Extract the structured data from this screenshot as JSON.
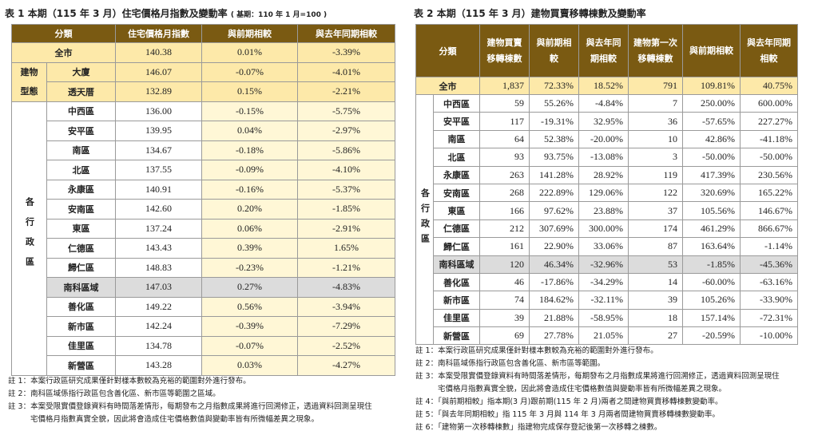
{
  "table1": {
    "title": "表 1 本期（115 年 3 月）住宅價格月指數及變動率",
    "base_note": "( 基期：110 年 1 月=100 )",
    "headers": [
      "分類",
      "住宅價格月指數",
      "與前期相較",
      "與去年同期相較"
    ],
    "total": {
      "name": "全市",
      "index": "140.38",
      "mom": "0.01%",
      "yoy": "-3.39%"
    },
    "building_group_label": "建物型態",
    "building_rows": [
      {
        "name": "大廈",
        "index": "146.07",
        "mom": "-0.07%",
        "yoy": "-4.01%"
      },
      {
        "name": "透天厝",
        "index": "132.89",
        "mom": "0.15%",
        "yoy": "-2.21%"
      }
    ],
    "district_group_label": "各行政區",
    "district_rows": [
      {
        "name": "中西區",
        "index": "136.00",
        "mom": "-0.15%",
        "yoy": "-5.75%"
      },
      {
        "name": "安平區",
        "index": "139.95",
        "mom": "0.04%",
        "yoy": "-2.97%"
      },
      {
        "name": "南區",
        "index": "134.67",
        "mom": "-0.18%",
        "yoy": "-5.86%"
      },
      {
        "name": "北區",
        "index": "137.55",
        "mom": "-0.09%",
        "yoy": "-4.10%"
      },
      {
        "name": "永康區",
        "index": "140.91",
        "mom": "-0.16%",
        "yoy": "-5.37%"
      },
      {
        "name": "安南區",
        "index": "142.60",
        "mom": "0.20%",
        "yoy": "-1.85%"
      },
      {
        "name": "東區",
        "index": "137.24",
        "mom": "0.06%",
        "yoy": "-2.91%"
      },
      {
        "name": "仁德區",
        "index": "143.43",
        "mom": "0.39%",
        "yoy": "1.65%"
      },
      {
        "name": "歸仁區",
        "index": "148.83",
        "mom": "-0.23%",
        "yoy": "-1.21%"
      },
      {
        "name": "南科區域",
        "index": "147.03",
        "mom": "0.27%",
        "yoy": "-4.83%",
        "highlight": true
      },
      {
        "name": "善化區",
        "index": "149.22",
        "mom": "0.56%",
        "yoy": "-3.94%"
      },
      {
        "name": "新市區",
        "index": "142.24",
        "mom": "-0.39%",
        "yoy": "-7.29%"
      },
      {
        "name": "佳里區",
        "index": "134.78",
        "mom": "-0.07%",
        "yoy": "-2.52%"
      },
      {
        "name": "新營區",
        "index": "143.28",
        "mom": "0.03%",
        "yoy": "-4.27%"
      }
    ],
    "notes": [
      "註 1：本案行政區研究成果僅針對樣本數較為充裕的範圍對外進行發布。",
      "註 2：南科區域係指行政區包含善化區、新市區等範圍之區域。",
      "註 3：本案受限實價登錄資料有時間落差情形，每期發布之月指數成果將進行回溯修正，透過資料回測呈現住",
      "宅價格月指數真實全貌，因此將會造成住宅價格數值與變動率皆有所微幅差異之現象。"
    ]
  },
  "table2": {
    "title": "表 2 本期（115 年 3 月）建物買賣移轉棟數及變動率",
    "headers": [
      "分類",
      "建物買賣移轉棟數",
      "與前期相較",
      "與去年同期相較",
      "建物第一次移轉棟數",
      "與前期相較",
      "與去年同期相較"
    ],
    "total": {
      "name": "全市",
      "sale": "1,837",
      "mom": "72.33%",
      "yoy": "18.52%",
      "first": "791",
      "fmom": "109.81%",
      "fyoy": "40.75%"
    },
    "district_group_label": "各行政區",
    "rows": [
      {
        "name": "中西區",
        "sale": "59",
        "mom": "55.26%",
        "yoy": "-4.84%",
        "first": "7",
        "fmom": "250.00%",
        "fyoy": "600.00%"
      },
      {
        "name": "安平區",
        "sale": "117",
        "mom": "-19.31%",
        "yoy": "32.95%",
        "first": "36",
        "fmom": "-57.65%",
        "fyoy": "227.27%"
      },
      {
        "name": "南區",
        "sale": "64",
        "mom": "52.38%",
        "yoy": "-20.00%",
        "first": "10",
        "fmom": "42.86%",
        "fyoy": "-41.18%"
      },
      {
        "name": "北區",
        "sale": "93",
        "mom": "93.75%",
        "yoy": "-13.08%",
        "first": "3",
        "fmom": "-50.00%",
        "fyoy": "-50.00%"
      },
      {
        "name": "永康區",
        "sale": "263",
        "mom": "141.28%",
        "yoy": "28.92%",
        "first": "119",
        "fmom": "417.39%",
        "fyoy": "230.56%"
      },
      {
        "name": "安南區",
        "sale": "268",
        "mom": "222.89%",
        "yoy": "129.06%",
        "first": "122",
        "fmom": "320.69%",
        "fyoy": "165.22%"
      },
      {
        "name": "東區",
        "sale": "166",
        "mom": "97.62%",
        "yoy": "23.88%",
        "first": "37",
        "fmom": "105.56%",
        "fyoy": "146.67%"
      },
      {
        "name": "仁德區",
        "sale": "212",
        "mom": "307.69%",
        "yoy": "300.00%",
        "first": "174",
        "fmom": "461.29%",
        "fyoy": "866.67%"
      },
      {
        "name": "歸仁區",
        "sale": "161",
        "mom": "22.90%",
        "yoy": "33.06%",
        "first": "87",
        "fmom": "163.64%",
        "fyoy": "-1.14%"
      },
      {
        "name": "南科區域",
        "sale": "120",
        "mom": "46.34%",
        "yoy": "-32.96%",
        "first": "53",
        "fmom": "-1.85%",
        "fyoy": "-45.36%",
        "highlight": true
      },
      {
        "name": "善化區",
        "sale": "46",
        "mom": "-17.86%",
        "yoy": "-34.29%",
        "first": "14",
        "fmom": "-60.00%",
        "fyoy": "-63.16%"
      },
      {
        "name": "新市區",
        "sale": "74",
        "mom": "184.62%",
        "yoy": "-32.11%",
        "first": "39",
        "fmom": "105.26%",
        "fyoy": "-33.90%"
      },
      {
        "name": "佳里區",
        "sale": "39",
        "mom": "21.88%",
        "yoy": "-58.95%",
        "first": "18",
        "fmom": "157.14%",
        "fyoy": "-72.31%"
      },
      {
        "name": "新營區",
        "sale": "69",
        "mom": "27.78%",
        "yoy": "21.05%",
        "first": "27",
        "fmom": "-20.59%",
        "fyoy": "-10.00%"
      }
    ],
    "notes": [
      "註 1：本案行政區研究成果僅針對樣本數較為充裕的範圍對外進行發布。",
      "註 2：南科區域係指行政區包含善化區、新市區等範圍。",
      "註 3：本案受限實價登錄資料有時間落差情形，每期發布之月指數成果將進行回溯修正，透過資料回測呈現住",
      "宅價格月指數真實全貌，因此將會造成住宅價格數值與變動率皆有所微幅差異之現象。",
      "註 4：「與前期相較」指本期(3 月)跟前期(115 年 2 月)兩者之間建物買賣移轉棟數變動率。",
      "註 5：「與去年同期相較」指 115 年 3 月與 114 年 3 月兩者間建物買賣移轉棟數變動率。",
      "註 6：「建物第一次移轉棟數」指建物完成保存登記後第一次移轉之棟數。"
    ]
  },
  "colors": {
    "header_bg": "#7a5a12",
    "highlight_bg": "#fde9a9",
    "gray_row": "#dcdcdc"
  }
}
